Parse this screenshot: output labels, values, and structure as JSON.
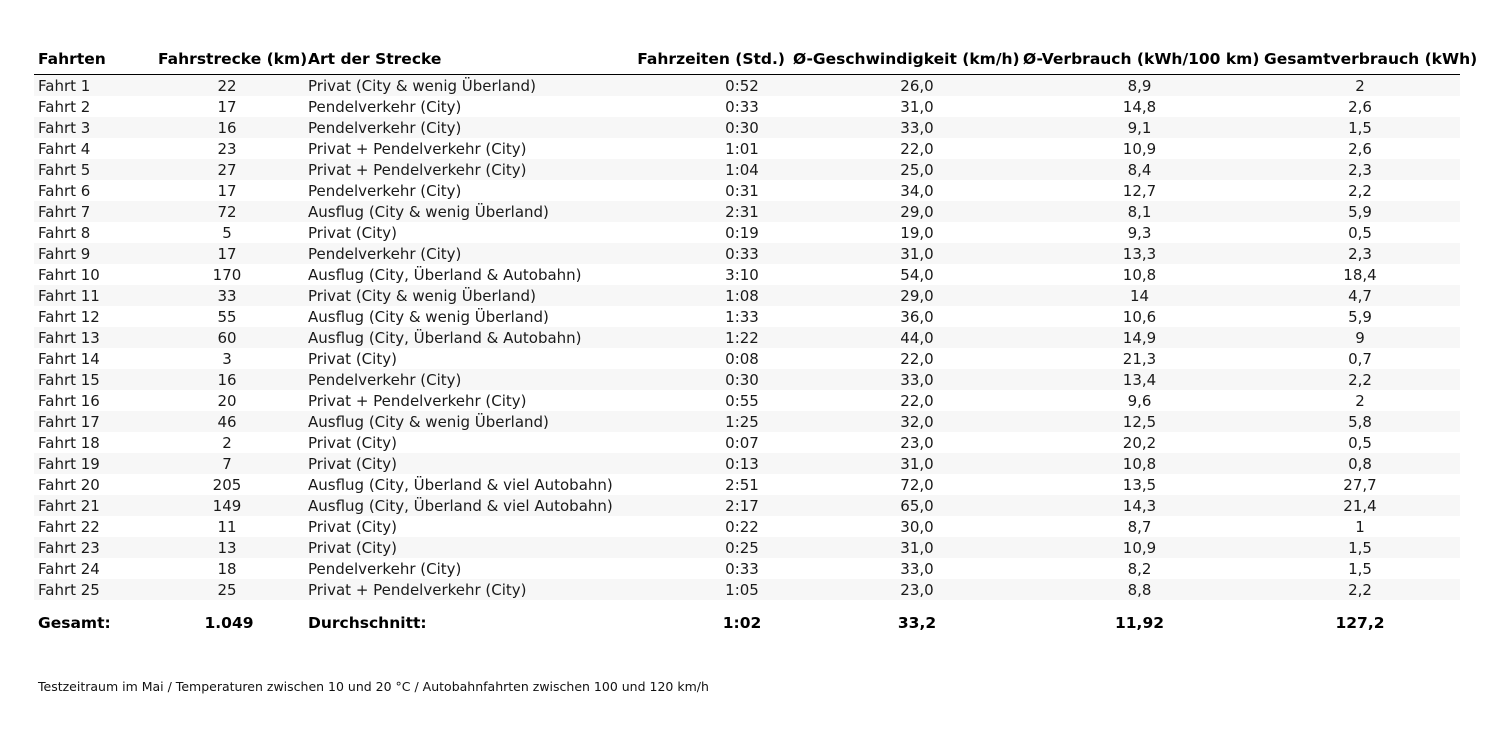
{
  "table": {
    "headers": [
      "Fahrten",
      "Fahrstrecke (km)",
      "Art der Strecke",
      "Fahrzeiten (Std.)",
      "Ø-Geschwindigkeit (km/h)",
      "Ø-Verbrauch (kWh/100 km)",
      "Gesamtverbrauch (kWh)"
    ],
    "rows": [
      [
        "Fahrt 1",
        "22",
        "Privat (City & wenig Überland)",
        "0:52",
        "26,0",
        "8,9",
        "2"
      ],
      [
        "Fahrt 2",
        "17",
        "Pendelverkehr (City)",
        "0:33",
        "31,0",
        "14,8",
        "2,6"
      ],
      [
        "Fahrt 3",
        "16",
        "Pendelverkehr (City)",
        "0:30",
        "33,0",
        "9,1",
        "1,5"
      ],
      [
        "Fahrt 4",
        "23",
        "Privat + Pendelverkehr (City)",
        "1:01",
        "22,0",
        "10,9",
        "2,6"
      ],
      [
        "Fahrt 5",
        "27",
        "Privat + Pendelverkehr (City)",
        "1:04",
        "25,0",
        "8,4",
        "2,3"
      ],
      [
        "Fahrt 6",
        "17",
        "Pendelverkehr (City)",
        "0:31",
        "34,0",
        "12,7",
        "2,2"
      ],
      [
        "Fahrt 7",
        "72",
        "Ausflug (City & wenig Überland)",
        "2:31",
        "29,0",
        "8,1",
        "5,9"
      ],
      [
        "Fahrt 8",
        "5",
        "Privat (City)",
        "0:19",
        "19,0",
        "9,3",
        "0,5"
      ],
      [
        "Fahrt 9",
        "17",
        "Pendelverkehr (City)",
        "0:33",
        "31,0",
        "13,3",
        "2,3"
      ],
      [
        "Fahrt 10",
        "170",
        "Ausflug (City, Überland & Autobahn)",
        "3:10",
        "54,0",
        "10,8",
        "18,4"
      ],
      [
        "Fahrt 11",
        "33",
        "Privat (City & wenig Überland)",
        "1:08",
        "29,0",
        "14",
        "4,7"
      ],
      [
        "Fahrt 12",
        "55",
        "Ausflug (City & wenig Überland)",
        "1:33",
        "36,0",
        "10,6",
        "5,9"
      ],
      [
        "Fahrt 13",
        "60",
        "Ausflug (City, Überland & Autobahn)",
        "1:22",
        "44,0",
        "14,9",
        "9"
      ],
      [
        "Fahrt 14",
        "3",
        "Privat (City)",
        "0:08",
        "22,0",
        "21,3",
        "0,7"
      ],
      [
        "Fahrt 15",
        "16",
        "Pendelverkehr (City)",
        "0:30",
        "33,0",
        "13,4",
        "2,2"
      ],
      [
        "Fahrt 16",
        "20",
        "Privat + Pendelverkehr (City)",
        "0:55",
        "22,0",
        "9,6",
        "2"
      ],
      [
        "Fahrt 17",
        "46",
        "Ausflug (City & wenig Überland)",
        "1:25",
        "32,0",
        "12,5",
        "5,8"
      ],
      [
        "Fahrt 18",
        "2",
        "Privat (City)",
        "0:07",
        "23,0",
        "20,2",
        "0,5"
      ],
      [
        "Fahrt 19",
        "7",
        "Privat (City)",
        "0:13",
        "31,0",
        "10,8",
        "0,8"
      ],
      [
        "Fahrt 20",
        "205",
        "Ausflug (City, Überland & viel Autobahn)",
        "2:51",
        "72,0",
        "13,5",
        "27,7"
      ],
      [
        "Fahrt 21",
        "149",
        "Ausflug (City, Überland & viel Autobahn)",
        "2:17",
        "65,0",
        "14,3",
        "21,4"
      ],
      [
        "Fahrt 22",
        "11",
        "Privat (City)",
        "0:22",
        "30,0",
        "8,7",
        "1"
      ],
      [
        "Fahrt 23",
        "13",
        "Privat (City)",
        "0:25",
        "31,0",
        "10,9",
        "1,5"
      ],
      [
        "Fahrt 24",
        "18",
        "Pendelverkehr (City)",
        "0:33",
        "33,0",
        "8,2",
        "1,5"
      ],
      [
        "Fahrt 25",
        "25",
        "Privat + Pendelverkehr (City)",
        "1:05",
        "23,0",
        "8,8",
        "2,2"
      ]
    ],
    "totals": {
      "label": "Gesamt:",
      "distance": "1.049",
      "avg_label": "Durchschnitt:",
      "time": "1:02",
      "speed": "33,2",
      "consumption": "11,92",
      "total_consumption": "127,2"
    }
  },
  "footnote": "Testzeitraum im Mai / Temperaturen zwischen 10 und 20 °C / Autobahnfahrten zwischen 100 und 120 km/h"
}
